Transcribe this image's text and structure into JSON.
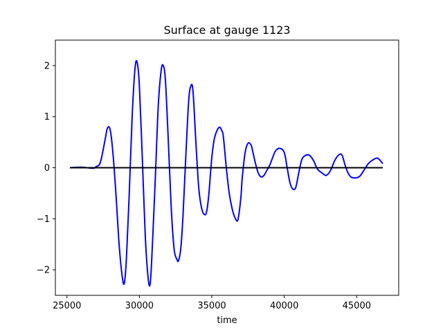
{
  "chart_data": {
    "type": "line",
    "title": "Surface at gauge 1123",
    "xlabel": "time",
    "ylabel": "",
    "xlim": [
      24200,
      47900
    ],
    "ylim": [
      -2.5,
      2.5
    ],
    "x_ticks": [
      25000,
      30000,
      35000,
      40000,
      45000
    ],
    "x_tick_labels": [
      "25000",
      "30000",
      "35000",
      "40000",
      "45000"
    ],
    "y_ticks": [
      -2,
      -1,
      0,
      1,
      2
    ],
    "y_tick_labels": [
      "−2",
      "−1",
      "0",
      "1",
      "2"
    ],
    "grid": false,
    "legend": "none",
    "series": [
      {
        "color": "#0000ff",
        "line_width": 2,
        "x": [
          25200,
          26000,
          26800,
          27000,
          27300,
          27600,
          27800,
          28000,
          28200,
          28400,
          28600,
          28800,
          28950,
          29100,
          29300,
          29500,
          29700,
          29850,
          30000,
          30200,
          30400,
          30600,
          30750,
          30900,
          31100,
          31300,
          31500,
          31650,
          31800,
          32000,
          32200,
          32400,
          32600,
          32700,
          32850,
          33000,
          33200,
          33400,
          33550,
          33700,
          33900,
          34100,
          34300,
          34500,
          34650,
          34800,
          35000,
          35200,
          35500,
          35700,
          35800,
          36000,
          36200,
          36400,
          36600,
          36800,
          37000,
          37100,
          37300,
          37500,
          37700,
          37800,
          38000,
          38200,
          38400,
          38600,
          38800,
          39000,
          39200,
          39400,
          39700,
          40000,
          40200,
          40400,
          40600,
          40800,
          41000,
          41200,
          41400,
          41700,
          42000,
          42300,
          42600,
          42900,
          43200,
          43500,
          43800,
          44000,
          44200,
          44400,
          44600,
          44900,
          45200,
          45500,
          45800,
          46100,
          46400,
          46600,
          46800
        ],
        "y": [
          0.0,
          0.01,
          -0.01,
          0.02,
          0.1,
          0.5,
          0.78,
          0.72,
          0.2,
          -0.6,
          -1.5,
          -2.1,
          -2.27,
          -1.8,
          -0.5,
          1.0,
          1.95,
          2.06,
          1.6,
          0.2,
          -1.3,
          -2.15,
          -2.26,
          -1.5,
          -0.2,
          1.2,
          1.9,
          2.0,
          1.7,
          0.5,
          -0.8,
          -1.6,
          -1.8,
          -1.82,
          -1.6,
          -1.0,
          0.2,
          1.3,
          1.6,
          1.5,
          0.5,
          -0.4,
          -0.8,
          -0.92,
          -0.85,
          -0.5,
          0.2,
          0.6,
          0.79,
          0.72,
          0.6,
          0.0,
          -0.5,
          -0.8,
          -0.98,
          -1.02,
          -0.6,
          -0.2,
          0.3,
          0.48,
          0.45,
          0.35,
          0.1,
          -0.1,
          -0.18,
          -0.15,
          -0.05,
          0.05,
          0.2,
          0.33,
          0.38,
          0.3,
          0.0,
          -0.3,
          -0.42,
          -0.38,
          -0.1,
          0.15,
          0.23,
          0.25,
          0.15,
          -0.03,
          -0.1,
          -0.15,
          -0.05,
          0.15,
          0.26,
          0.24,
          0.05,
          -0.1,
          -0.18,
          -0.2,
          -0.17,
          -0.05,
          0.08,
          0.15,
          0.19,
          0.15,
          0.08
        ]
      },
      {
        "color": "#000000",
        "line_width": 2,
        "x": [
          25200,
          46800
        ],
        "y": [
          0,
          0
        ]
      }
    ]
  }
}
